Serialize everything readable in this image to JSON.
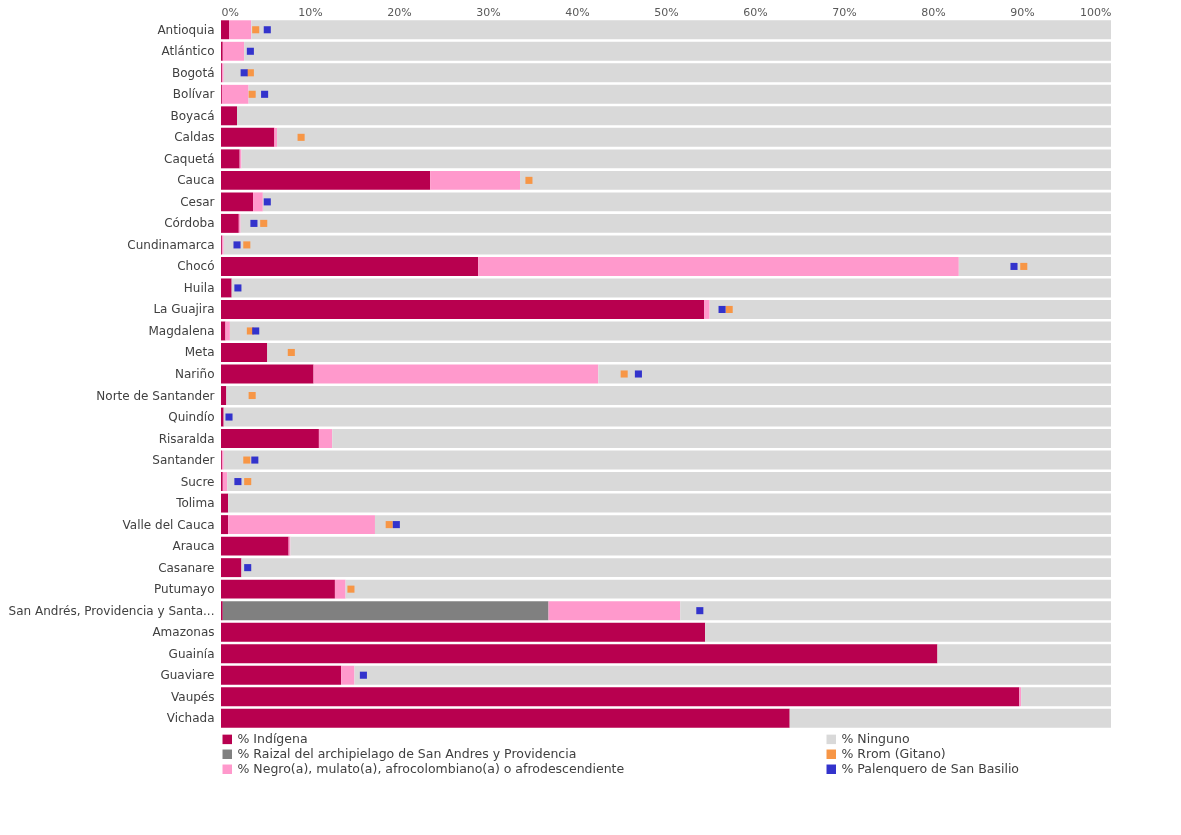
{
  "chart_data": {
    "type": "bar",
    "orientation": "horizontal",
    "stacked": true,
    "grid": false,
    "legend": "bottom",
    "marker": "square",
    "xlim": [
      0,
      100
    ],
    "xticks": [
      {
        "value": 0,
        "label": "0%"
      },
      {
        "value": 10,
        "label": "10%"
      },
      {
        "value": 20,
        "label": "20%"
      },
      {
        "value": 30,
        "label": "30%"
      },
      {
        "value": 40,
        "label": "40%"
      },
      {
        "value": 50,
        "label": "50%"
      },
      {
        "value": 60,
        "label": "60%"
      },
      {
        "value": 70,
        "label": "70%"
      },
      {
        "value": 80,
        "label": "80%"
      },
      {
        "value": 90,
        "label": "90%"
      },
      {
        "value": 100,
        "label": "100%"
      }
    ],
    "categories": [
      "Antioquia",
      "Atlántico",
      "Bogotá",
      "Bolívar",
      "Boyacá",
      "Caldas",
      "Caquetá",
      "Cauca",
      "Cesar",
      "Córdoba",
      "Cundinamarca",
      "Chocó",
      "Huila",
      "La Guajira",
      "Magdalena",
      "Meta",
      "Nariño",
      "Norte de Santander",
      "Quindío",
      "Risaralda",
      "Santander",
      "Sucre",
      "Tolima",
      "Valle del Cauca",
      "Arauca",
      "Casanare",
      "Putumayo",
      "San Andrés, Providencia y Santa...",
      "Amazonas",
      "Guainía",
      "Guaviare",
      "Vaupés",
      "Vichada"
    ],
    "series": [
      {
        "name": "% Indígena",
        "color": "#b8004f",
        "values": [
          0.9,
          0.2,
          0.1,
          0.1,
          1.8,
          6.0,
          2.1,
          23.5,
          3.6,
          2.0,
          0.1,
          28.9,
          1.2,
          54.3,
          0.5,
          5.2,
          10.4,
          0.6,
          0.3,
          11.0,
          0.1,
          0.2,
          0.8,
          0.8,
          7.6,
          2.3,
          12.8,
          0.2,
          54.4,
          80.5,
          13.5,
          89.7,
          63.9
        ]
      },
      {
        "name": "% Raizal del archipielago de San Andres y Providencia",
        "color": "#808080",
        "values": [
          0,
          0,
          0,
          0,
          0,
          0,
          0,
          0,
          0,
          0,
          0,
          0,
          0,
          0,
          0,
          0,
          0,
          0,
          0,
          0,
          0,
          0,
          0,
          0,
          0,
          0,
          0,
          36.6,
          0,
          0,
          0,
          0,
          0
        ]
      },
      {
        "name": "% Negro(a), mulato(a), afrocolombiano(a) o afrodescendiente",
        "color": "#ff99cc",
        "values": [
          2.5,
          2.4,
          0.2,
          3.0,
          0,
          0.3,
          0.2,
          10.1,
          1.1,
          0.2,
          0.2,
          54.0,
          0,
          0.6,
          0.5,
          0,
          32.0,
          0,
          0,
          1.5,
          0.2,
          0.5,
          0,
          16.5,
          0.2,
          0,
          1.2,
          14.8,
          0,
          0,
          1.5,
          0.2,
          0
        ]
      },
      {
        "name": "% Ninguno",
        "color": "#d9d9d9",
        "values": [
          96.6,
          97.4,
          99.7,
          96.9,
          98.2,
          93.7,
          97.7,
          66.4,
          95.3,
          97.8,
          99.7,
          17.1,
          98.8,
          45.1,
          99.0,
          94.8,
          57.6,
          99.4,
          99.7,
          87.5,
          99.7,
          99.3,
          99.2,
          82.7,
          92.2,
          97.7,
          86.0,
          48.4,
          45.6,
          19.5,
          85.0,
          10.1,
          36.1
        ]
      },
      {
        "name": "% Rrom (Gitano)",
        "color": "#f79646",
        "type": "scatter",
        "values": [
          3.9,
          null,
          3.3,
          3.5,
          null,
          9.0,
          null,
          34.6,
          null,
          4.8,
          2.9,
          90.2,
          null,
          57.1,
          3.3,
          7.9,
          45.3,
          3.5,
          null,
          null,
          2.9,
          3.0,
          null,
          18.9,
          null,
          null,
          14.6,
          null,
          null,
          null,
          null,
          null,
          null
        ]
      },
      {
        "name": "% Palenquero de San Basilio",
        "color": "#3333cc",
        "type": "scatter",
        "values": [
          5.2,
          3.3,
          2.6,
          4.9,
          null,
          null,
          null,
          null,
          5.2,
          3.7,
          1.8,
          89.1,
          1.9,
          56.3,
          3.9,
          null,
          46.9,
          null,
          0.9,
          null,
          3.8,
          1.9,
          null,
          19.7,
          null,
          3.0,
          null,
          53.8,
          null,
          null,
          16.0,
          null,
          null
        ]
      }
    ]
  }
}
